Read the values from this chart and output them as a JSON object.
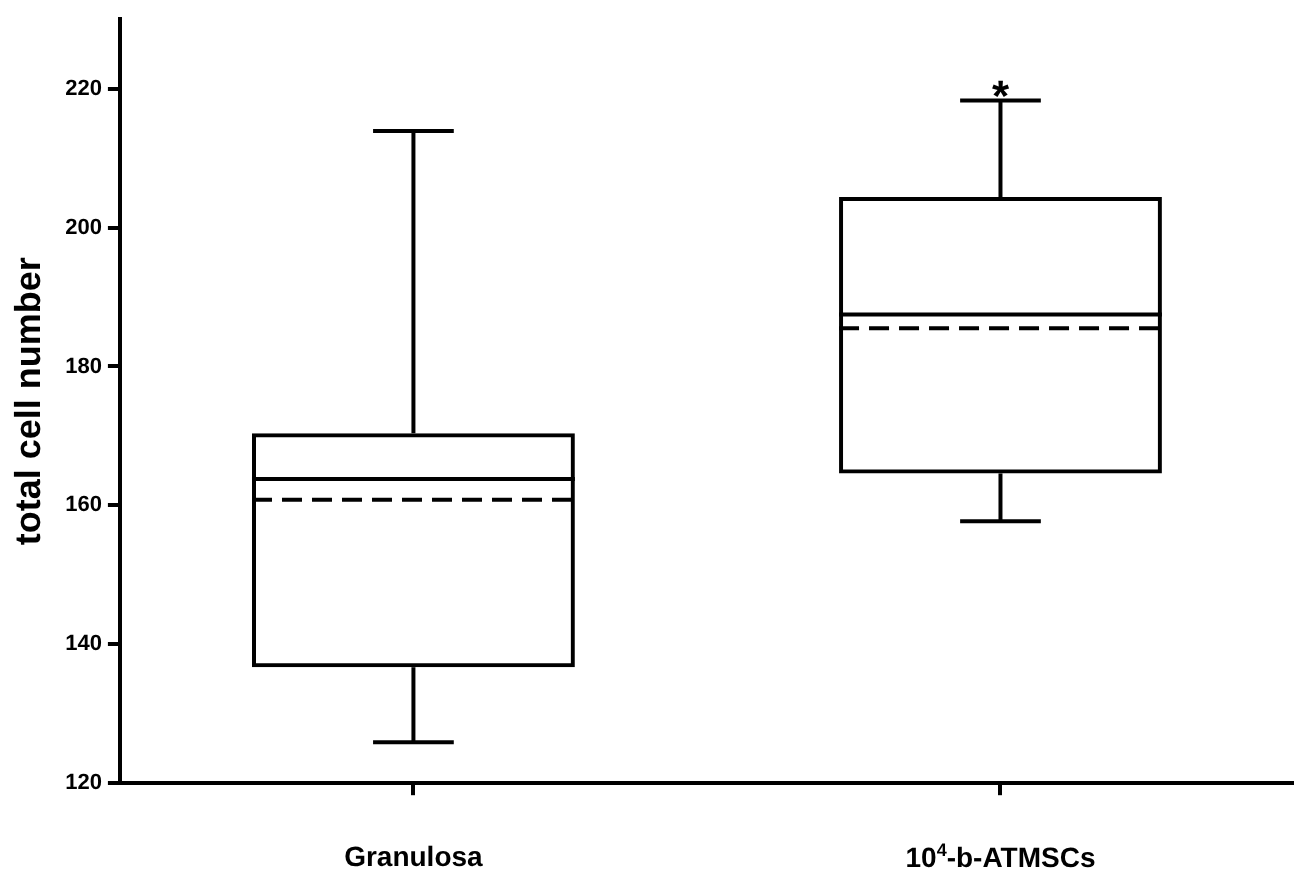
{
  "chart_data": {
    "type": "box",
    "ylabel": "total cell number",
    "categories": [
      "Granulosa",
      "10$^{4}$-b-ATMSCs"
    ],
    "boxes": [
      {
        "low": 125.9,
        "q1": 136.7,
        "median": 163.8,
        "q3": 170.4,
        "high": 213.9,
        "mean": 160.8
      },
      {
        "low": 157.7,
        "q1": 164.6,
        "median": 187.5,
        "q3": 204.4,
        "high": 218.3,
        "mean": 185.5
      }
    ],
    "ylim": [
      120,
      230
    ],
    "yticks": [
      120,
      140,
      160,
      180,
      200,
      220
    ],
    "grid": false,
    "legend": false,
    "annotations": [
      {
        "text": "*",
        "x": "10$^{4}$-b-ATMSCs",
        "y": 218.3
      }
    ]
  }
}
